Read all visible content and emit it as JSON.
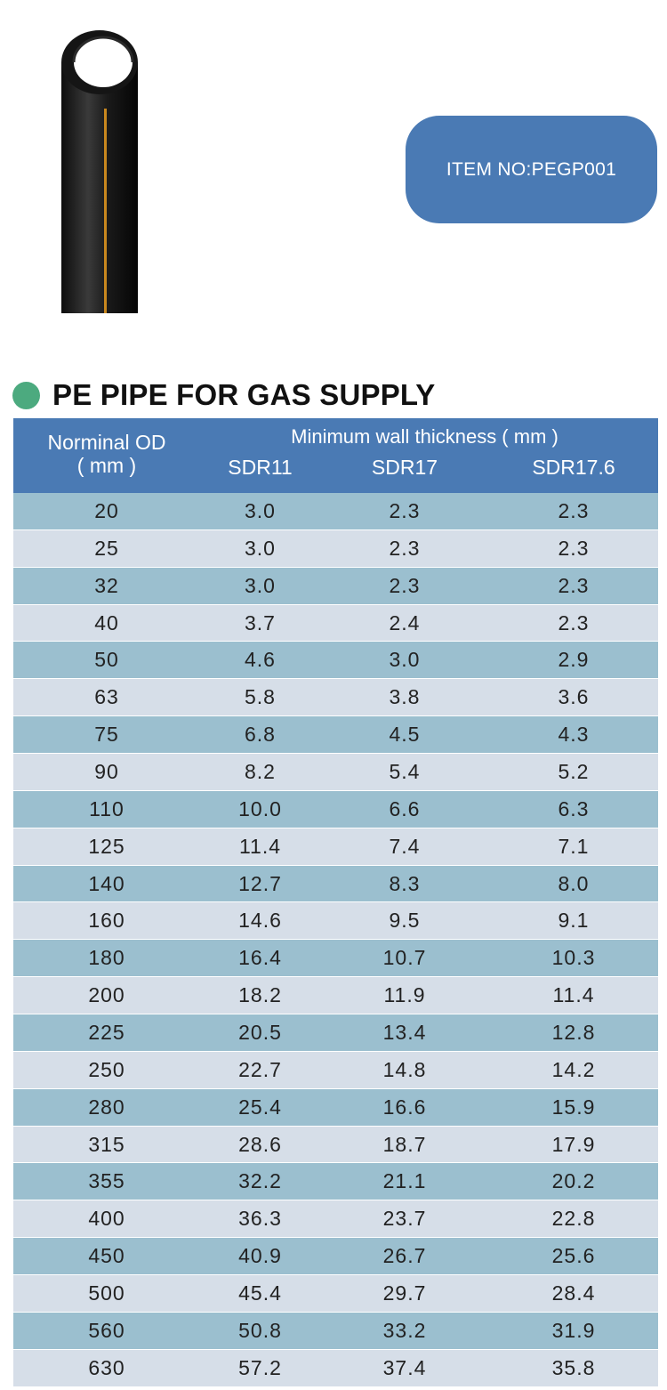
{
  "item_badge": {
    "label": "ITEM NO:PEGP001"
  },
  "section": {
    "title": "PE PIPE FOR GAS SUPPLY"
  },
  "colors": {
    "header_blue": "#4a7ab4",
    "row_odd": "#9bbfcf",
    "row_even": "#d6dee8",
    "dot_green": "#4caa7f",
    "pipe_stripe": "#c9871e"
  },
  "table": {
    "header": {
      "od_label": "Norminal OD",
      "od_unit": "( mm )",
      "group_label": "Minimum wall thickness ( mm )",
      "sdr_columns": [
        "SDR11",
        "SDR17",
        "SDR17.6"
      ]
    },
    "rows": [
      [
        "20",
        "3.0",
        "2.3",
        "2.3"
      ],
      [
        "25",
        "3.0",
        "2.3",
        "2.3"
      ],
      [
        "32",
        "3.0",
        "2.3",
        "2.3"
      ],
      [
        "40",
        "3.7",
        "2.4",
        "2.3"
      ],
      [
        "50",
        "4.6",
        "3.0",
        "2.9"
      ],
      [
        "63",
        "5.8",
        "3.8",
        "3.6"
      ],
      [
        "75",
        "6.8",
        "4.5",
        "4.3"
      ],
      [
        "90",
        "8.2",
        "5.4",
        "5.2"
      ],
      [
        "110",
        "10.0",
        "6.6",
        "6.3"
      ],
      [
        "125",
        "11.4",
        "7.4",
        "7.1"
      ],
      [
        "140",
        "12.7",
        "8.3",
        "8.0"
      ],
      [
        "160",
        "14.6",
        "9.5",
        "9.1"
      ],
      [
        "180",
        "16.4",
        "10.7",
        "10.3"
      ],
      [
        "200",
        "18.2",
        "11.9",
        "11.4"
      ],
      [
        "225",
        "20.5",
        "13.4",
        "12.8"
      ],
      [
        "250",
        "22.7",
        "14.8",
        "14.2"
      ],
      [
        "280",
        "25.4",
        "16.6",
        "15.9"
      ],
      [
        "315",
        "28.6",
        "18.7",
        "17.9"
      ],
      [
        "355",
        "32.2",
        "21.1",
        "20.2"
      ],
      [
        "400",
        "36.3",
        "23.7",
        "22.8"
      ],
      [
        "450",
        "40.9",
        "26.7",
        "25.6"
      ],
      [
        "500",
        "45.4",
        "29.7",
        "28.4"
      ],
      [
        "560",
        "50.8",
        "33.2",
        "31.9"
      ],
      [
        "630",
        "57.2",
        "37.4",
        "35.8"
      ]
    ]
  }
}
